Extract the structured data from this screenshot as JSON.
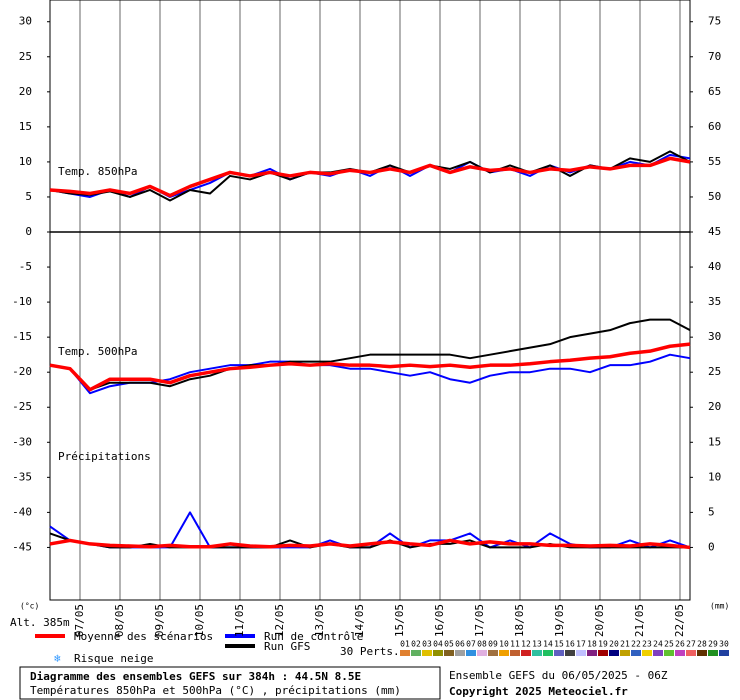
{
  "chart_data": {
    "type": "line",
    "panel_labels": [
      "Temp. 850hPa",
      "Temp. 500hPa",
      "Précipitations"
    ],
    "y_unit_label": "(°c)",
    "y2_unit_label": "(mm)",
    "altitude": "Alt. 385m",
    "x": [
      0,
      12,
      24,
      36,
      48,
      60,
      72,
      84,
      96,
      108,
      120,
      132,
      144,
      156,
      168,
      180,
      192,
      204,
      216,
      228,
      240,
      252,
      264,
      276,
      288,
      300,
      312,
      324,
      336,
      348,
      360,
      372,
      384
    ],
    "xlim": [
      0,
      384
    ],
    "xticks": [
      {
        "value": 18,
        "label": "07/05"
      },
      {
        "value": 42,
        "label": "08/05"
      },
      {
        "value": 66,
        "label": "09/05"
      },
      {
        "value": 90,
        "label": "10/05"
      },
      {
        "value": 114,
        "label": "11/05"
      },
      {
        "value": 138,
        "label": "12/05"
      },
      {
        "value": 162,
        "label": "13/05"
      },
      {
        "value": 186,
        "label": "14/05"
      },
      {
        "value": 210,
        "label": "15/05"
      },
      {
        "value": 234,
        "label": "16/05"
      },
      {
        "value": 258,
        "label": "17/05"
      },
      {
        "value": 282,
        "label": "18/05"
      },
      {
        "value": 306,
        "label": "19/05"
      },
      {
        "value": 330,
        "label": "20/05"
      },
      {
        "value": 354,
        "label": "21/05"
      },
      {
        "value": 378,
        "label": "22/05"
      }
    ],
    "ylim": [
      -52.5,
      33.1
    ],
    "yticks": [
      -45,
      -40,
      -35,
      -30,
      -25,
      -20,
      -15,
      -10,
      -5,
      0,
      5,
      10,
      15,
      20,
      25,
      30
    ],
    "y2lim": [
      -7.5,
      78.1
    ],
    "y2ticks": [
      0,
      5,
      10,
      15,
      20,
      25,
      30,
      35,
      40,
      45,
      50,
      55,
      60,
      65,
      70,
      75
    ],
    "grid": true,
    "series": [
      {
        "name": "Moyenne des scénarios",
        "color": "#ff0000",
        "values": [
          6,
          5.8,
          5.5,
          6,
          5.5,
          6.5,
          5.2,
          6.5,
          7.5,
          8.5,
          8,
          8.5,
          8,
          8.5,
          8.3,
          8.8,
          8.5,
          9,
          8.5,
          9.5,
          8.5,
          9.3,
          8.8,
          9,
          8.5,
          9,
          8.8,
          9.3,
          9,
          9.5,
          9.5,
          10.5,
          10
        ]
      },
      {
        "name": "Run de contrôle",
        "color": "#0000ff",
        "values": [
          6,
          5.5,
          5,
          6,
          5,
          6.5,
          5,
          6,
          7,
          8.5,
          8,
          9,
          7.5,
          8.5,
          8,
          9,
          8,
          9.5,
          8,
          9.5,
          8.5,
          10,
          8.5,
          9,
          8,
          9.5,
          8.5,
          9.5,
          9,
          10,
          9.5,
          11,
          10.5
        ]
      },
      {
        "name": "Run GFS",
        "color": "#000000",
        "values": [
          6,
          5.5,
          5.3,
          5.8,
          5,
          6,
          4.5,
          6,
          5.5,
          8,
          7.5,
          8.5,
          7.5,
          8.5,
          8.5,
          9,
          8.5,
          9.5,
          8.5,
          9.5,
          9,
          10,
          8.5,
          9.5,
          8.5,
          9.5,
          8,
          9.5,
          9,
          10.5,
          10,
          11.5,
          10
        ]
      },
      {
        "color": "#ff0000",
        "values": [
          -19,
          -19.5,
          -22.5,
          -21,
          -21,
          -21,
          -21.5,
          -20.5,
          -20,
          -19.5,
          -19.3,
          -19,
          -18.8,
          -19,
          -18.8,
          -19,
          -19,
          -19.2,
          -19,
          -19.2,
          -19,
          -19.3,
          -19,
          -19,
          -18.8,
          -18.5,
          -18.3,
          -18,
          -17.8,
          -17.3,
          -17,
          -16.3,
          -16
        ]
      },
      {
        "color": "#0000ff",
        "values": [
          -19,
          -19.5,
          -23,
          -22,
          -21.5,
          -21.5,
          -21,
          -20,
          -19.5,
          -19,
          -19,
          -18.5,
          -18.5,
          -19,
          -19,
          -19.5,
          -19.5,
          -20,
          -20.5,
          -20,
          -21,
          -21.5,
          -20.5,
          -20,
          -20,
          -19.5,
          -19.5,
          -20,
          -19,
          -19,
          -18.5,
          -17.5,
          -18
        ]
      },
      {
        "color": "#000000",
        "values": [
          -19,
          -19.5,
          -22.5,
          -21.5,
          -21.5,
          -21.5,
          -22,
          -21,
          -20.5,
          -19.5,
          -19,
          -19,
          -18.5,
          -18.5,
          -18.5,
          -18,
          -17.5,
          -17.5,
          -17.5,
          -17.5,
          -17.5,
          -18,
          -17.5,
          -17,
          -16.5,
          -16,
          -15,
          -14.5,
          -14,
          -13,
          -12.5,
          -12.5,
          -14
        ]
      },
      {
        "color": "#ff0000",
        "axis": "y2",
        "values": [
          0.5,
          1,
          0.5,
          0.3,
          0.2,
          0.1,
          0.3,
          0.1,
          0.1,
          0.5,
          0.2,
          0.1,
          0.3,
          0.2,
          0.5,
          0.2,
          0.5,
          0.8,
          0.5,
          0.3,
          1,
          0.5,
          0.8,
          0.5,
          0.5,
          0.3,
          0.3,
          0.2,
          0.3,
          0.2,
          0.5,
          0.3,
          0
        ]
      },
      {
        "color": "#0000ff",
        "axis": "y2",
        "values": [
          3,
          1,
          0.5,
          0,
          0,
          0,
          0,
          5,
          0,
          0,
          0,
          0,
          0,
          0,
          1,
          0,
          0,
          2,
          0,
          1,
          1,
          2,
          0,
          1,
          0,
          2,
          0.5,
          0,
          0,
          1,
          0,
          1,
          0
        ]
      },
      {
        "color": "#000000",
        "axis": "y2",
        "values": [
          2,
          1,
          0.5,
          0,
          0,
          0.5,
          0,
          0,
          0,
          0,
          0,
          0,
          1,
          0,
          0.5,
          0,
          0,
          1,
          0,
          0.5,
          0.5,
          1,
          0,
          0,
          0,
          0.5,
          0,
          0,
          0,
          0,
          0,
          0,
          0
        ]
      }
    ],
    "snow_label": "Risque neige",
    "perturbations": {
      "label": "30 Perts.",
      "names": [
        "01",
        "02",
        "03",
        "04",
        "05",
        "06",
        "07",
        "08",
        "09",
        "10",
        "11",
        "12",
        "13",
        "14",
        "15",
        "16",
        "17",
        "18",
        "19",
        "20",
        "21",
        "22",
        "23",
        "24",
        "25",
        "26",
        "27",
        "28",
        "29",
        "30"
      ],
      "colors": [
        "#e08030",
        "#60b060",
        "#e0c000",
        "#909000",
        "#806020",
        "#a0a0a0",
        "#3090e0",
        "#e0b0e0",
        "#a07040",
        "#f0a000",
        "#c06030",
        "#d02020",
        "#30c0a0",
        "#20c060",
        "#6060c0",
        "#404040",
        "#c0c0ff",
        "#802080",
        "#a00000",
        "#000080",
        "#c0a000",
        "#3060c0",
        "#f0d000",
        "#8040c0",
        "#60c030",
        "#c040c0",
        "#f06060",
        "#603000",
        "#209020",
        "#2040a0"
      ]
    },
    "footer": {
      "title": "Diagramme des ensembles GEFS sur 384h : 44.5N 8.5E",
      "subtitle": "Températures 850hPa et 500hPa (°C) , précipitations (mm)",
      "run": "Ensemble GEFS du 06/05/2025 - 06Z",
      "copyright": "Copyright 2025 Meteociel.fr"
    }
  }
}
